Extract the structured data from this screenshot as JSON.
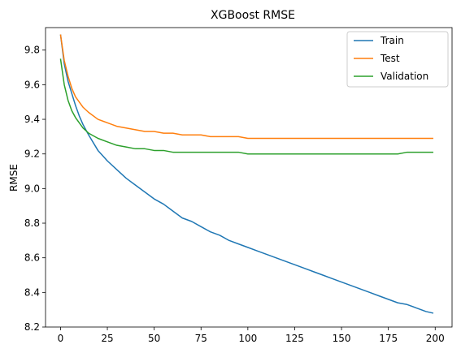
{
  "chart_data": {
    "type": "line",
    "title": "XGBoost RMSE",
    "xlabel": "",
    "ylabel": "RMSE",
    "xlim": [
      -8,
      209
    ],
    "ylim": [
      8.2,
      9.93
    ],
    "x_ticks": [
      0,
      25,
      50,
      75,
      100,
      125,
      150,
      175,
      200
    ],
    "y_ticks": [
      8.2,
      8.4,
      8.6,
      8.8,
      9.0,
      9.2,
      9.4,
      9.6,
      9.8
    ],
    "grid": false,
    "legend_position": "top-right",
    "x": [
      0,
      2,
      4,
      6,
      8,
      10,
      12,
      15,
      20,
      25,
      30,
      35,
      40,
      45,
      50,
      55,
      60,
      65,
      70,
      75,
      80,
      85,
      90,
      95,
      100,
      105,
      110,
      115,
      120,
      125,
      130,
      135,
      140,
      145,
      150,
      155,
      160,
      165,
      170,
      175,
      180,
      185,
      190,
      195,
      199
    ],
    "series": [
      {
        "name": "Train",
        "color": "#1f77b4",
        "values": [
          9.89,
          9.72,
          9.62,
          9.55,
          9.48,
          9.42,
          9.37,
          9.31,
          9.22,
          9.16,
          9.11,
          9.06,
          9.02,
          8.98,
          8.94,
          8.91,
          8.87,
          8.83,
          8.81,
          8.78,
          8.75,
          8.73,
          8.7,
          8.68,
          8.66,
          8.64,
          8.62,
          8.6,
          8.58,
          8.56,
          8.54,
          8.52,
          8.5,
          8.48,
          8.46,
          8.44,
          8.42,
          8.4,
          8.38,
          8.36,
          8.34,
          8.33,
          8.31,
          8.29,
          8.28
        ]
      },
      {
        "name": "Test",
        "color": "#ff7f0e",
        "values": [
          9.89,
          9.74,
          9.65,
          9.58,
          9.53,
          9.5,
          9.47,
          9.44,
          9.4,
          9.38,
          9.36,
          9.35,
          9.34,
          9.33,
          9.33,
          9.32,
          9.32,
          9.31,
          9.31,
          9.31,
          9.3,
          9.3,
          9.3,
          9.3,
          9.29,
          9.29,
          9.29,
          9.29,
          9.29,
          9.29,
          9.29,
          9.29,
          9.29,
          9.29,
          9.29,
          9.29,
          9.29,
          9.29,
          9.29,
          9.29,
          9.29,
          9.29,
          9.29,
          9.29,
          9.29
        ]
      },
      {
        "name": "Validation",
        "color": "#2ca02c",
        "values": [
          9.75,
          9.6,
          9.51,
          9.45,
          9.41,
          9.38,
          9.35,
          9.32,
          9.29,
          9.27,
          9.25,
          9.24,
          9.23,
          9.23,
          9.22,
          9.22,
          9.21,
          9.21,
          9.21,
          9.21,
          9.21,
          9.21,
          9.21,
          9.21,
          9.2,
          9.2,
          9.2,
          9.2,
          9.2,
          9.2,
          9.2,
          9.2,
          9.2,
          9.2,
          9.2,
          9.2,
          9.2,
          9.2,
          9.2,
          9.2,
          9.2,
          9.21,
          9.21,
          9.21,
          9.21
        ]
      }
    ]
  }
}
